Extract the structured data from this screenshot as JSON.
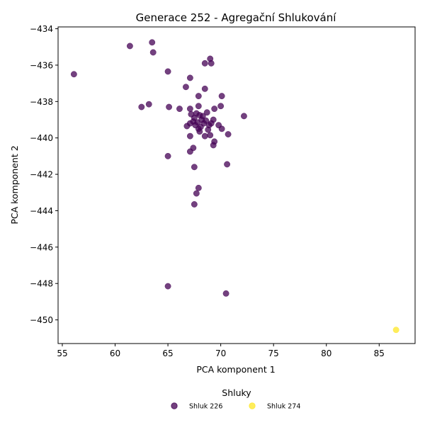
{
  "chart_data": {
    "type": "scatter",
    "title": "Generace 252 - Agregační Shlukování",
    "xlabel": "PCA komponent 1",
    "ylabel": "PCA komponent 2",
    "xlim": [
      54.6,
      88.4
    ],
    "ylim": [
      -451.3,
      -433.9
    ],
    "xticks": [
      55,
      60,
      65,
      70,
      75,
      80,
      85
    ],
    "yticks": [
      -450,
      -448,
      -446,
      -444,
      -442,
      -440,
      -438,
      -436,
      -434
    ],
    "grid": false,
    "legend": {
      "title": "Shluky",
      "placement": "bottom-center"
    },
    "series": [
      {
        "name": "Shluk 226",
        "color": "#440154",
        "points": [
          [
            56.1,
            -436.5
          ],
          [
            61.4,
            -434.95
          ],
          [
            63.5,
            -434.75
          ],
          [
            63.6,
            -435.3
          ],
          [
            65.0,
            -436.35
          ],
          [
            67.1,
            -436.7
          ],
          [
            66.7,
            -437.2
          ],
          [
            68.5,
            -435.9
          ],
          [
            69.0,
            -435.65
          ],
          [
            69.1,
            -435.9
          ],
          [
            68.5,
            -437.3
          ],
          [
            67.9,
            -437.7
          ],
          [
            70.1,
            -437.7
          ],
          [
            70.0,
            -438.25
          ],
          [
            63.2,
            -438.15
          ],
          [
            62.5,
            -438.3
          ],
          [
            65.1,
            -438.3
          ],
          [
            66.1,
            -438.4
          ],
          [
            67.1,
            -438.4
          ],
          [
            67.9,
            -438.25
          ],
          [
            69.4,
            -438.4
          ],
          [
            68.7,
            -438.6
          ],
          [
            72.2,
            -438.8
          ],
          [
            66.8,
            -439.35
          ],
          [
            67.2,
            -438.7
          ],
          [
            67.5,
            -438.9
          ],
          [
            67.7,
            -438.65
          ],
          [
            68.0,
            -438.75
          ],
          [
            68.3,
            -438.8
          ],
          [
            67.4,
            -439.1
          ],
          [
            67.8,
            -439.15
          ],
          [
            68.2,
            -439.0
          ],
          [
            68.6,
            -439.05
          ],
          [
            67.1,
            -439.2
          ],
          [
            67.6,
            -439.3
          ],
          [
            68.1,
            -439.4
          ],
          [
            68.9,
            -439.3
          ],
          [
            69.3,
            -439.0
          ],
          [
            67.9,
            -439.5
          ],
          [
            68.4,
            -439.2
          ],
          [
            69.1,
            -439.2
          ],
          [
            69.8,
            -439.3
          ],
          [
            70.1,
            -439.5
          ],
          [
            68.8,
            -439.55
          ],
          [
            67.1,
            -439.9
          ],
          [
            68.0,
            -439.65
          ],
          [
            68.5,
            -439.9
          ],
          [
            69.0,
            -439.85
          ],
          [
            70.7,
            -439.8
          ],
          [
            69.4,
            -440.2
          ],
          [
            69.3,
            -440.4
          ],
          [
            67.4,
            -440.55
          ],
          [
            67.1,
            -440.75
          ],
          [
            65.0,
            -441.0
          ],
          [
            70.6,
            -441.45
          ],
          [
            67.5,
            -441.6
          ],
          [
            67.9,
            -442.75
          ],
          [
            67.7,
            -443.05
          ],
          [
            67.5,
            -443.65
          ],
          [
            65.0,
            -448.15
          ],
          [
            70.5,
            -448.55
          ]
        ]
      },
      {
        "name": "Shluk 274",
        "color": "#fde725",
        "points": [
          [
            86.6,
            -450.55
          ]
        ]
      }
    ]
  }
}
